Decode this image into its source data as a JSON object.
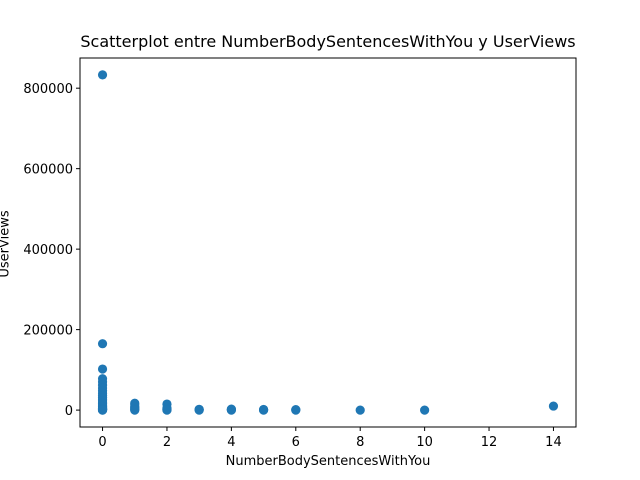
{
  "chart_data": {
    "type": "scatter",
    "title": "Scatterplot entre NumberBodySentencesWithYou y UserViews",
    "xlabel": "NumberBodySentencesWithYou",
    "ylabel": "UserViews",
    "xlim": [
      -0.7,
      14.7
    ],
    "ylim": [
      -42000,
      875000
    ],
    "xticks": [
      0,
      2,
      4,
      6,
      8,
      10,
      12,
      14
    ],
    "yticks": [
      0,
      200000,
      400000,
      600000,
      800000
    ],
    "ytick_labels": [
      "0",
      "200000",
      "400000",
      "600000",
      "800000"
    ],
    "grid": false,
    "marker_color": "#1f77b4",
    "series": [
      {
        "x": [
          0,
          0,
          0,
          0,
          0,
          0,
          0,
          0,
          0,
          0,
          0,
          0,
          0,
          0,
          0,
          0,
          0,
          0,
          0,
          0,
          0,
          0,
          0,
          0,
          0,
          0,
          0,
          1,
          1,
          1,
          1,
          1,
          1,
          1,
          2,
          2,
          2,
          2,
          2,
          3,
          3,
          3,
          4,
          4,
          4,
          5,
          5,
          5,
          6,
          6,
          8,
          10,
          14
        ],
        "y": [
          833000,
          165000,
          102000,
          78000,
          70000,
          62000,
          55000,
          48000,
          42000,
          36000,
          31000,
          27000,
          23000,
          19000,
          16000,
          13000,
          10500,
          8500,
          6500,
          5000,
          3800,
          2800,
          1900,
          1200,
          700,
          300,
          0,
          17000,
          13000,
          9000,
          6000,
          3500,
          1500,
          0,
          15000,
          5000,
          2500,
          1000,
          0,
          2000,
          800,
          0,
          2500,
          1000,
          0,
          1500,
          700,
          0,
          1200,
          0,
          0,
          0,
          10000
        ]
      }
    ]
  }
}
